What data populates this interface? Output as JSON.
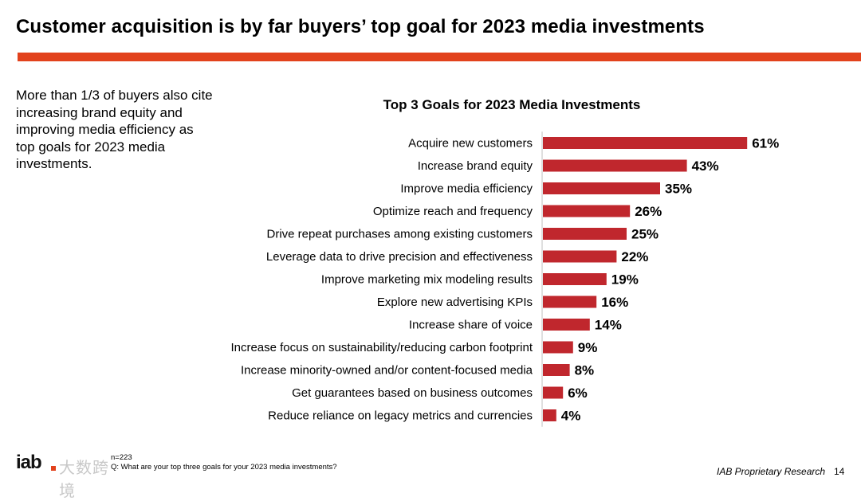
{
  "slide": {
    "title": "Customer acquisition is by far buyers’ top goal for 2023 media investments",
    "accent_color": "#e2421c",
    "side_note": "More than 1/3 of buyers also cite increasing brand equity and improving media efficiency as top goals for 2023 media investments.",
    "footnote_n": "n=223",
    "footnote_q": "Q: What are your top three goals for your 2023 media investments?",
    "brand_logo": "iab",
    "brand_watermark": "大数跨境",
    "research_label": "IAB Proprietary Research",
    "page_number": "14"
  },
  "chart_data": {
    "type": "bar",
    "orientation": "horizontal",
    "title": "Top 3 Goals for 2023 Media Investments",
    "bar_color": "#c0272d",
    "value_suffix": "%",
    "categories": [
      "Acquire new customers",
      "Increase brand equity",
      "Improve media efficiency",
      "Optimize reach and frequency",
      "Drive repeat purchases among existing customers",
      "Leverage data to drive precision and effectiveness",
      "Improve marketing mix modeling results",
      "Explore new advertising KPIs",
      "Increase share of voice",
      "Increase focus on sustainability/reducing carbon footprint",
      "Increase minority-owned and/or content-focused media",
      "Get guarantees based on business outcomes",
      "Reduce reliance on legacy metrics and currencies"
    ],
    "values": [
      61,
      43,
      35,
      26,
      25,
      22,
      19,
      16,
      14,
      9,
      8,
      6,
      4
    ],
    "xlim": [
      0,
      100
    ],
    "xlabel": "",
    "ylabel": ""
  }
}
